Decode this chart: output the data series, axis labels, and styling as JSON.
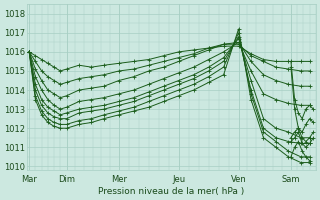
{
  "background_color": "#cce8e0",
  "grid_color": "#a8cfc4",
  "line_color": "#1a5c1a",
  "ylabel": "Pression niveau de la mer( hPa )",
  "ylim": [
    1009.8,
    1018.5
  ],
  "yticks": [
    1010,
    1011,
    1012,
    1013,
    1014,
    1015,
    1016,
    1017,
    1018
  ],
  "day_labels": [
    "Mar",
    "Dim",
    "Mer",
    "Jeu",
    "Ven",
    "Sam"
  ],
  "day_positions": [
    0,
    30,
    72,
    120,
    168,
    210
  ],
  "xlim": [
    -2,
    230
  ],
  "lines": [
    {
      "x": [
        0,
        5,
        10,
        15,
        20,
        25,
        30,
        40,
        50,
        60,
        72,
        84,
        96,
        108,
        120,
        132,
        144,
        156,
        168,
        178,
        188,
        198,
        208,
        218,
        225
      ],
      "y": [
        1016.0,
        1015.8,
        1015.6,
        1015.4,
        1015.2,
        1015.0,
        1015.1,
        1015.3,
        1015.2,
        1015.3,
        1015.4,
        1015.5,
        1015.6,
        1015.8,
        1016.0,
        1016.1,
        1016.2,
        1016.3,
        1016.3,
        1015.9,
        1015.6,
        1015.5,
        1015.5,
        1015.5,
        1015.5
      ]
    },
    {
      "x": [
        0,
        5,
        10,
        15,
        20,
        25,
        30,
        40,
        50,
        60,
        72,
        84,
        96,
        108,
        120,
        132,
        144,
        156,
        168,
        178,
        188,
        198,
        208,
        218,
        225
      ],
      "y": [
        1016.0,
        1015.5,
        1015.0,
        1014.7,
        1014.5,
        1014.3,
        1014.4,
        1014.6,
        1014.7,
        1014.8,
        1015.0,
        1015.1,
        1015.3,
        1015.5,
        1015.7,
        1015.9,
        1016.2,
        1016.4,
        1016.4,
        1015.8,
        1015.5,
        1015.2,
        1015.1,
        1015.0,
        1015.0
      ]
    },
    {
      "x": [
        0,
        5,
        10,
        15,
        20,
        25,
        30,
        40,
        50,
        60,
        72,
        84,
        96,
        108,
        120,
        132,
        144,
        156,
        168,
        178,
        188,
        198,
        208,
        218,
        225
      ],
      "y": [
        1016.0,
        1015.1,
        1014.5,
        1014.0,
        1013.8,
        1013.6,
        1013.7,
        1014.0,
        1014.1,
        1014.2,
        1014.5,
        1014.7,
        1015.0,
        1015.2,
        1015.5,
        1015.8,
        1016.1,
        1016.4,
        1016.5,
        1015.5,
        1014.8,
        1014.5,
        1014.3,
        1014.2,
        1014.2
      ]
    },
    {
      "x": [
        0,
        5,
        10,
        15,
        20,
        25,
        30,
        40,
        50,
        60,
        72,
        84,
        96,
        108,
        120,
        132,
        144,
        156,
        168,
        178,
        188,
        198,
        208,
        218,
        225
      ],
      "y": [
        1016.0,
        1014.7,
        1014.0,
        1013.5,
        1013.2,
        1013.0,
        1013.1,
        1013.4,
        1013.5,
        1013.6,
        1013.8,
        1014.0,
        1014.3,
        1014.6,
        1014.9,
        1015.2,
        1015.6,
        1016.0,
        1016.5,
        1015.0,
        1013.8,
        1013.5,
        1013.3,
        1013.2,
        1013.2
      ]
    },
    {
      "x": [
        0,
        5,
        10,
        15,
        20,
        25,
        30,
        40,
        50,
        60,
        72,
        84,
        96,
        108,
        120,
        132,
        144,
        156,
        168,
        178,
        188,
        198,
        208,
        218,
        225
      ],
      "y": [
        1016.0,
        1014.3,
        1013.5,
        1013.1,
        1012.9,
        1012.7,
        1012.8,
        1013.0,
        1013.1,
        1013.2,
        1013.4,
        1013.6,
        1013.9,
        1014.2,
        1014.5,
        1014.8,
        1015.2,
        1015.7,
        1016.7,
        1014.5,
        1012.5,
        1012.0,
        1011.8,
        1011.5,
        1011.5
      ]
    },
    {
      "x": [
        0,
        5,
        10,
        15,
        20,
        25,
        30,
        40,
        50,
        60,
        72,
        84,
        96,
        108,
        120,
        132,
        144,
        156,
        168,
        178,
        188,
        198,
        208,
        218,
        225
      ],
      "y": [
        1016.0,
        1014.0,
        1013.2,
        1012.8,
        1012.6,
        1012.5,
        1012.5,
        1012.8,
        1012.9,
        1013.0,
        1013.2,
        1013.4,
        1013.7,
        1014.0,
        1014.3,
        1014.6,
        1015.0,
        1015.5,
        1016.8,
        1014.0,
        1012.0,
        1011.5,
        1011.3,
        1011.2,
        1011.2
      ]
    },
    {
      "x": [
        0,
        5,
        10,
        15,
        20,
        25,
        30,
        40,
        50,
        60,
        72,
        84,
        96,
        108,
        120,
        132,
        144,
        156,
        168,
        178,
        188,
        198,
        208,
        218,
        225
      ],
      "y": [
        1016.0,
        1013.7,
        1012.9,
        1012.5,
        1012.3,
        1012.2,
        1012.2,
        1012.4,
        1012.5,
        1012.7,
        1012.9,
        1013.1,
        1013.4,
        1013.7,
        1014.0,
        1014.3,
        1014.7,
        1015.2,
        1017.0,
        1013.8,
        1011.8,
        1011.3,
        1010.8,
        1010.5,
        1010.5
      ]
    },
    {
      "x": [
        0,
        5,
        10,
        15,
        20,
        25,
        30,
        40,
        50,
        60,
        72,
        84,
        96,
        108,
        120,
        132,
        144,
        156,
        168,
        178,
        188,
        198,
        208,
        218,
        225
      ],
      "y": [
        1016.0,
        1013.5,
        1012.7,
        1012.3,
        1012.1,
        1012.0,
        1012.0,
        1012.2,
        1012.3,
        1012.5,
        1012.7,
        1012.9,
        1013.1,
        1013.4,
        1013.7,
        1014.0,
        1014.4,
        1014.8,
        1017.2,
        1013.5,
        1011.5,
        1011.0,
        1010.5,
        1010.2,
        1010.2
      ]
    }
  ],
  "right_wiggles": [
    {
      "x": [
        210,
        213,
        216,
        219,
        222,
        225,
        228
      ],
      "y": [
        1015.5,
        1013.5,
        1012.8,
        1012.5,
        1013.0,
        1013.2,
        1013.0
      ]
    },
    {
      "x": [
        210,
        213,
        216,
        219,
        222,
        225,
        228
      ],
      "y": [
        1015.2,
        1013.0,
        1012.0,
        1011.8,
        1012.2,
        1012.5,
        1012.3
      ]
    },
    {
      "x": [
        210,
        213,
        216,
        219,
        222,
        225,
        228
      ],
      "y": [
        1011.5,
        1011.8,
        1012.0,
        1011.5,
        1011.3,
        1011.5,
        1011.8
      ]
    },
    {
      "x": [
        210,
        213,
        216,
        219,
        222,
        225,
        228
      ],
      "y": [
        1011.3,
        1011.5,
        1011.8,
        1011.2,
        1011.0,
        1011.2,
        1011.5
      ]
    },
    {
      "x": [
        210,
        213,
        216,
        219,
        222,
        225
      ],
      "y": [
        1010.5,
        1011.0,
        1011.3,
        1010.8,
        1010.5,
        1010.3
      ]
    }
  ]
}
